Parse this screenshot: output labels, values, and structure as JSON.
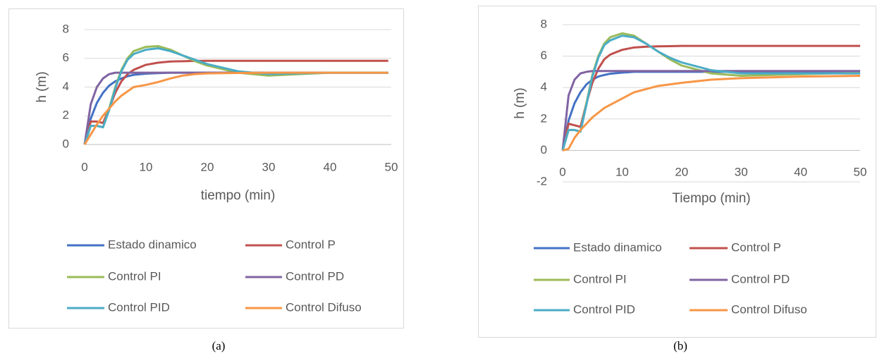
{
  "chart_data": [
    {
      "type": "line",
      "caption": "(a)",
      "xlabel": "tiempo (min)",
      "ylabel": "h (m)",
      "xlim": [
        0,
        50
      ],
      "xticks": [
        0,
        10,
        20,
        30,
        40,
        50
      ],
      "ylim": [
        0,
        8
      ],
      "yticks": [
        0,
        2,
        4,
        6,
        8
      ],
      "grid": true,
      "x": [
        0,
        1,
        2,
        3,
        4,
        5,
        6,
        7,
        8,
        10,
        12,
        14,
        16,
        18,
        20,
        25,
        30,
        35,
        40,
        45,
        49.5
      ],
      "series": [
        {
          "name": "Estado dinamico",
          "color": "#4472c4",
          "values": [
            0,
            1.8,
            2.9,
            3.6,
            4.1,
            4.4,
            4.6,
            4.75,
            4.85,
            4.93,
            4.97,
            5,
            5,
            5,
            5,
            5,
            5,
            5,
            5,
            5,
            5
          ]
        },
        {
          "name": "Control P",
          "color": "#c0504d",
          "values": [
            0,
            1.6,
            1.6,
            1.5,
            2.5,
            3.6,
            4.4,
            4.9,
            5.2,
            5.55,
            5.7,
            5.78,
            5.8,
            5.82,
            5.83,
            5.83,
            5.83,
            5.83,
            5.83,
            5.83,
            5.83
          ]
        },
        {
          "name": "Control PI",
          "color": "#9bbb59",
          "values": [
            0,
            1.3,
            1.3,
            1.2,
            2.5,
            4.0,
            5.2,
            6.0,
            6.5,
            6.8,
            6.85,
            6.6,
            6.2,
            5.8,
            5.5,
            5.0,
            4.8,
            4.9,
            5.0,
            5.0,
            5.0
          ]
        },
        {
          "name": "Control PD",
          "color": "#8064a2",
          "values": [
            0,
            2.8,
            4.0,
            4.6,
            4.9,
            5.0,
            5.0,
            5.0,
            5.0,
            5.0,
            5.0,
            5.0,
            5.0,
            5.0,
            5.0,
            5.0,
            5.0,
            5.0,
            5.0,
            5.0,
            5.0
          ]
        },
        {
          "name": "Control PID",
          "color": "#4bacc6",
          "values": [
            0,
            1.3,
            1.3,
            1.2,
            2.4,
            3.9,
            5.1,
            5.9,
            6.3,
            6.6,
            6.7,
            6.5,
            6.2,
            5.9,
            5.6,
            5.1,
            4.9,
            4.95,
            5,
            5,
            5
          ]
        },
        {
          "name": "Control Difuso",
          "color": "#f79646",
          "values": [
            0,
            0.7,
            1.4,
            2.0,
            2.5,
            3.0,
            3.4,
            3.7,
            4.0,
            4.15,
            4.35,
            4.6,
            4.8,
            4.9,
            4.95,
            4.98,
            5,
            5,
            5,
            5,
            5
          ]
        }
      ]
    },
    {
      "type": "line",
      "caption": "(b)",
      "xlabel": "Tiempo (min)",
      "ylabel": "h (m)",
      "xlim": [
        0,
        50
      ],
      "xticks": [
        0,
        10,
        20,
        30,
        40,
        50
      ],
      "ylim": [
        -2,
        8
      ],
      "yticks": [
        -2,
        0,
        2,
        4,
        6,
        8
      ],
      "grid": true,
      "x": [
        0,
        1,
        2,
        3,
        4,
        5,
        6,
        7,
        8,
        10,
        12,
        14,
        16,
        18,
        20,
        25,
        30,
        35,
        40,
        45,
        50
      ],
      "series": [
        {
          "name": "Estado dinamico",
          "color": "#4472c4",
          "values": [
            0,
            1.9,
            3.0,
            3.7,
            4.2,
            4.5,
            4.7,
            4.8,
            4.88,
            4.95,
            5,
            5,
            5,
            5,
            5,
            5,
            5,
            5,
            5,
            5,
            5
          ]
        },
        {
          "name": "Control P",
          "color": "#c0504d",
          "values": [
            0,
            1.7,
            1.6,
            1.5,
            3.0,
            4.3,
            5.2,
            5.8,
            6.1,
            6.4,
            6.55,
            6.6,
            6.62,
            6.63,
            6.65,
            6.65,
            6.65,
            6.65,
            6.65,
            6.65,
            6.65
          ]
        },
        {
          "name": "Control PI",
          "color": "#9bbb59",
          "values": [
            0,
            1.3,
            1.3,
            1.2,
            3.0,
            4.8,
            6.0,
            6.8,
            7.2,
            7.45,
            7.3,
            6.8,
            6.3,
            5.8,
            5.4,
            4.9,
            4.75,
            4.8,
            4.85,
            4.9,
            4.95
          ]
        },
        {
          "name": "Control PD",
          "color": "#8064a2",
          "values": [
            0,
            3.5,
            4.5,
            4.9,
            5.0,
            5.05,
            5.05,
            5.05,
            5.05,
            5.05,
            5.05,
            5.05,
            5.05,
            5.05,
            5.05,
            5.05,
            5.05,
            5.05,
            5.05,
            5.05,
            5.05
          ]
        },
        {
          "name": "Control PID",
          "color": "#4bacc6",
          "values": [
            0,
            1.3,
            1.3,
            1.2,
            2.9,
            4.7,
            5.9,
            6.7,
            7.0,
            7.3,
            7.2,
            6.8,
            6.3,
            5.9,
            5.6,
            5.1,
            4.9,
            4.9,
            4.9,
            4.9,
            4.9
          ]
        },
        {
          "name": "Control Difuso",
          "color": "#f79646",
          "values": [
            0,
            0.1,
            0.8,
            1.3,
            1.7,
            2.1,
            2.4,
            2.7,
            2.9,
            3.3,
            3.7,
            3.9,
            4.1,
            4.2,
            4.3,
            4.5,
            4.6,
            4.65,
            4.7,
            4.72,
            4.75
          ]
        }
      ]
    }
  ]
}
